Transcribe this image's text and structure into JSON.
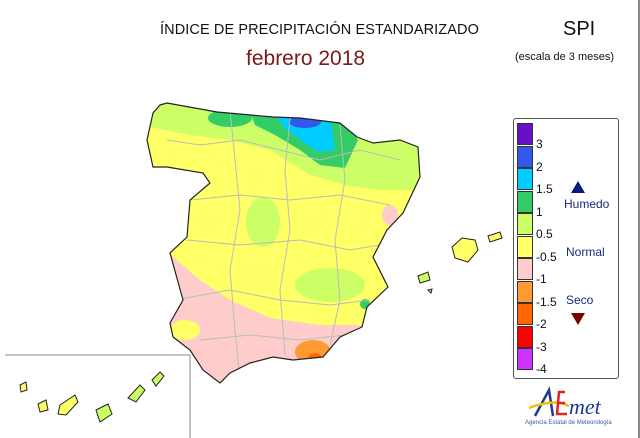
{
  "title": "ÍNDICE DE PRECIPITACIÓN ESTANDARIZADO",
  "period": "febrero 2018",
  "index_name": "SPI",
  "scale": "(escala de 3 meses)",
  "legend": {
    "colors": [
      "#6a0fc8",
      "#3358ee",
      "#00ccff",
      "#33cc66",
      "#ccff66",
      "#ffff66",
      "#ffcccc",
      "#ff9933",
      "#ff6600",
      "#ff0000",
      "#cc33ff"
    ],
    "labels": [
      "3",
      "2",
      "1.5",
      "1",
      "0.5",
      "-0.5",
      "-1",
      "-1.5",
      "-2",
      "-3",
      "-4"
    ],
    "humid": "Humedo",
    "normal": "Normal",
    "dry": "Seco"
  },
  "logo": {
    "name": "AEMet",
    "subtitle": "Agencia Estatal de Meteorología"
  }
}
